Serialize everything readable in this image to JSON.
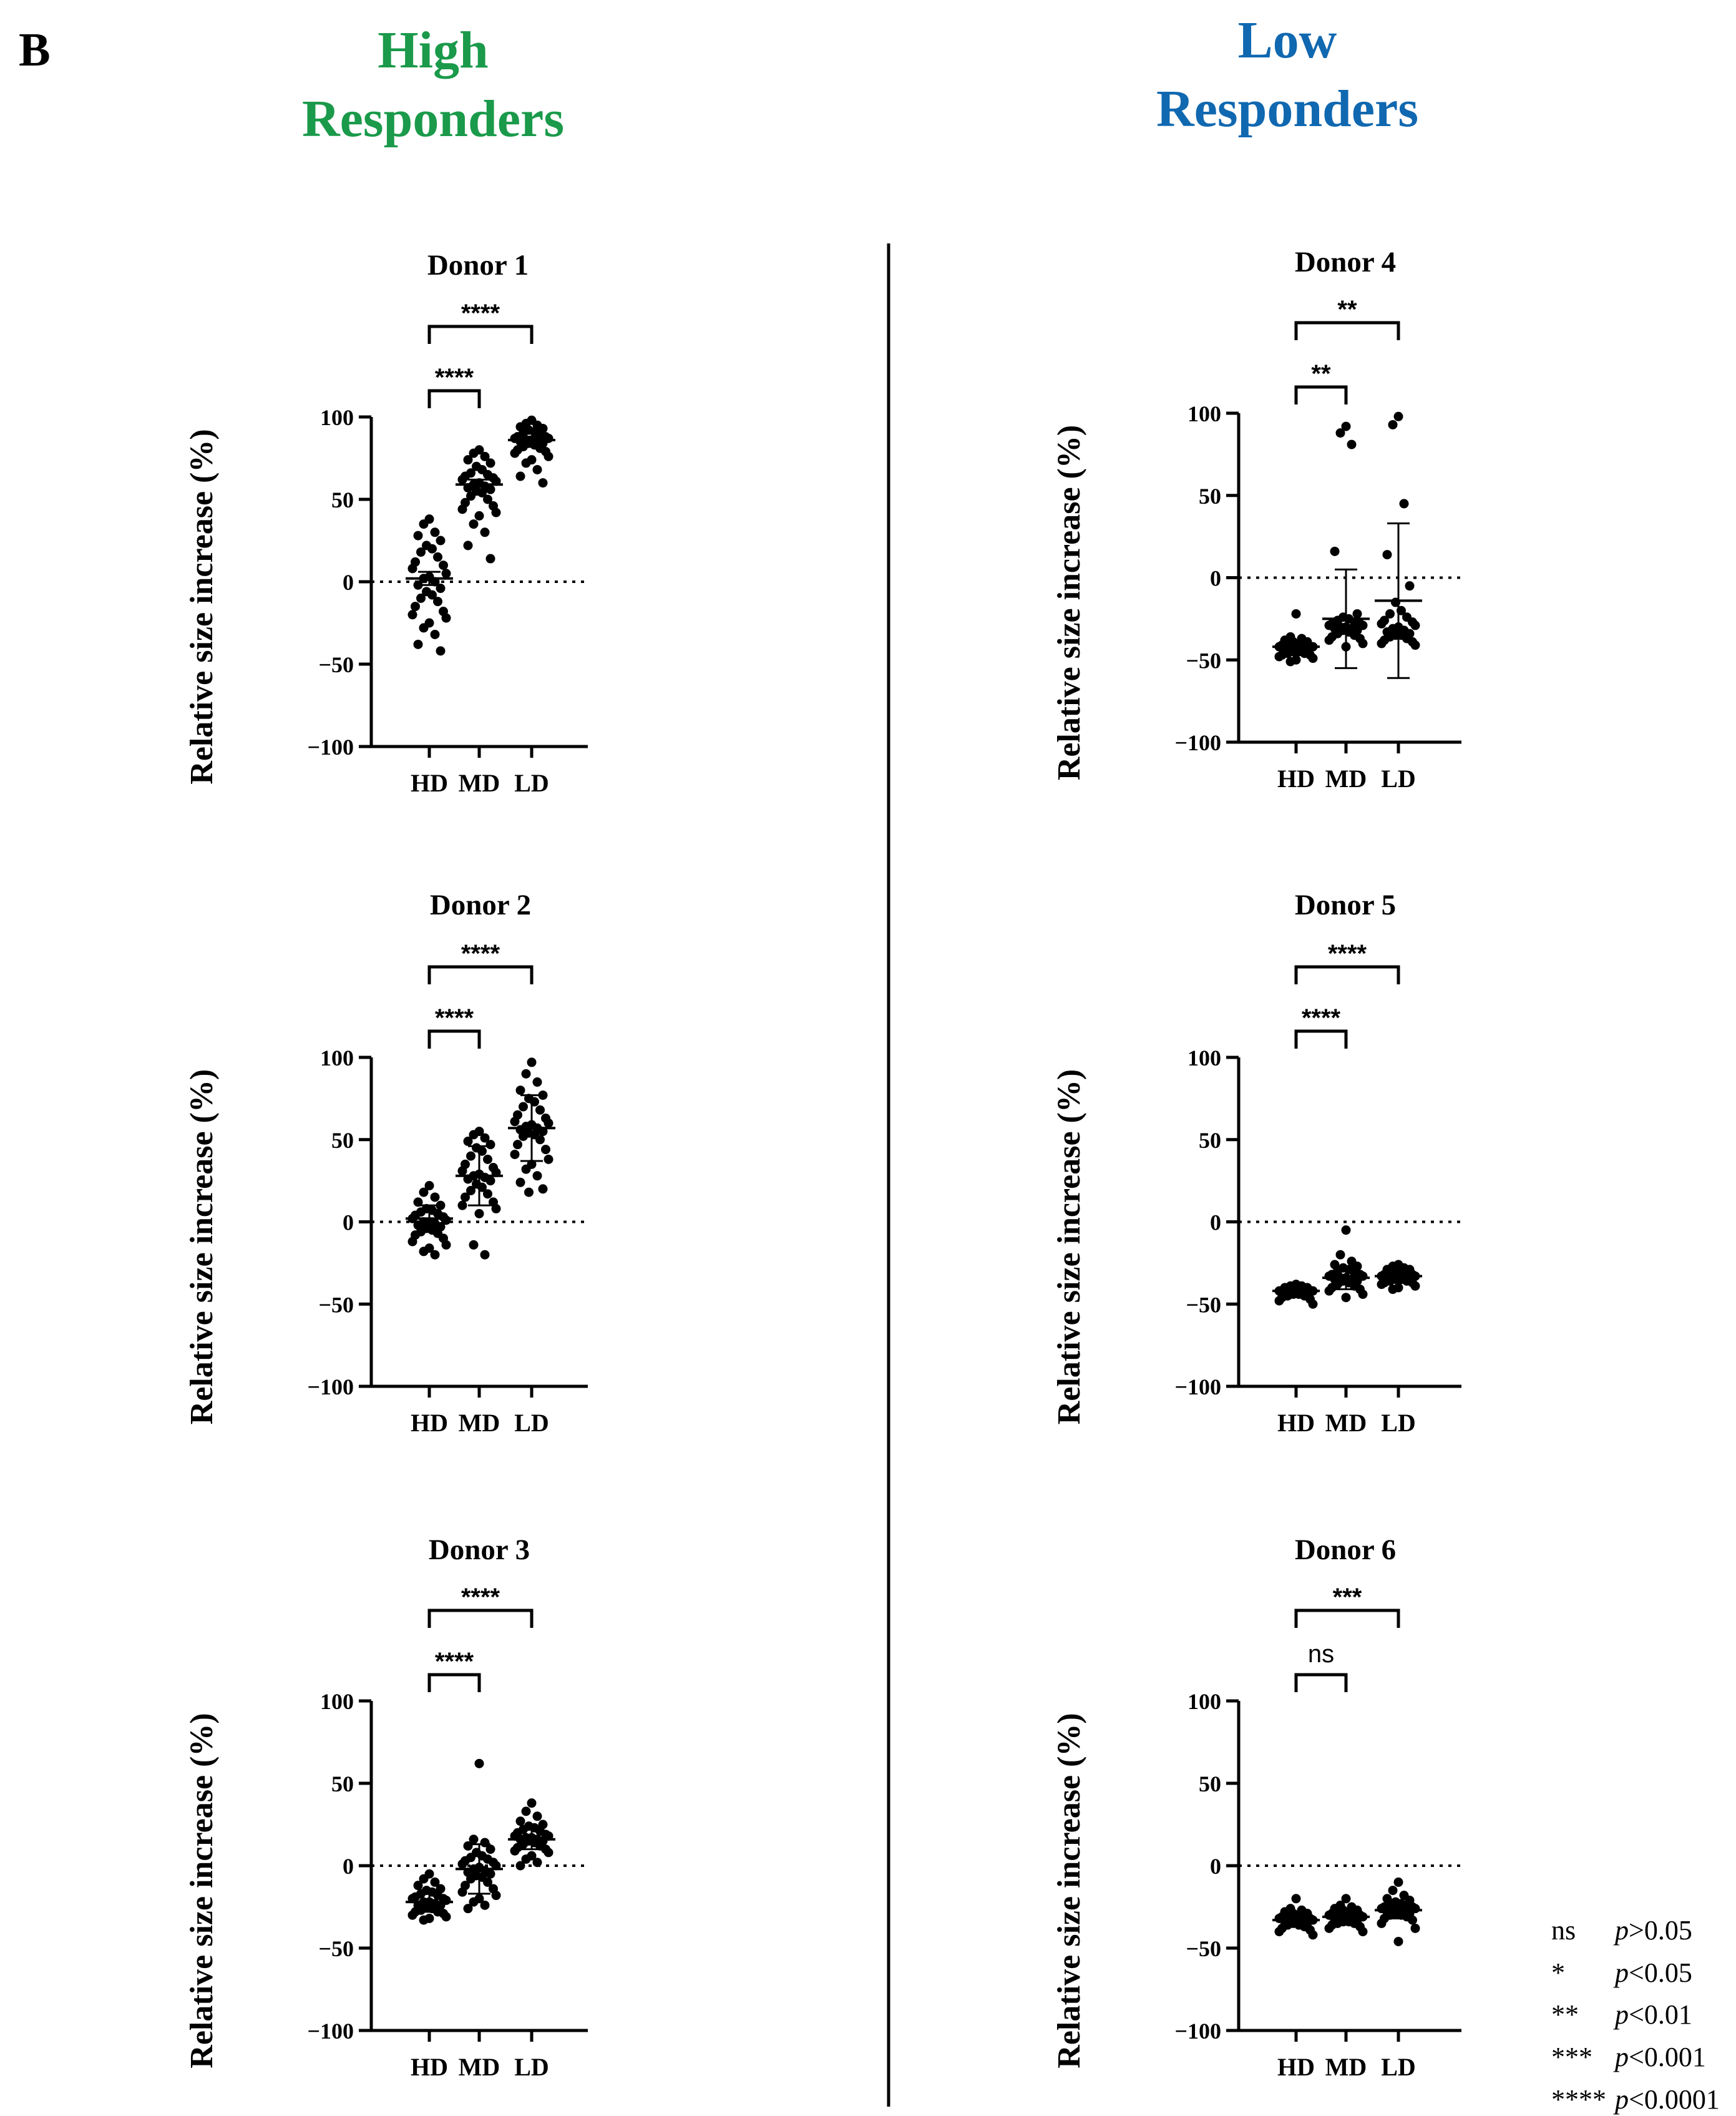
{
  "panel_letter": "B",
  "groups": {
    "high": {
      "title_line1": "High",
      "title_line2": "Responders",
      "color": "#1a9a4a"
    },
    "low": {
      "title_line1": "Low",
      "title_line2": "Responders",
      "color": "#1068b0"
    }
  },
  "legend": [
    {
      "symbol": "ns",
      "p_var": "p",
      "p_text": ">0.05"
    },
    {
      "symbol": "*",
      "p_var": "p",
      "p_text": "<0.05"
    },
    {
      "symbol": "**",
      "p_var": "p",
      "p_text": "<0.01"
    },
    {
      "symbol": "***",
      "p_var": "p",
      "p_text": "<0.001"
    },
    {
      "symbol": "****",
      "p_var": "p",
      "p_text": "<0.0001"
    }
  ],
  "chart_data": [
    {
      "type": "scatter",
      "group": "High Responders",
      "title": "Donor 1",
      "ylabel": "Relative size increase (%)",
      "ylim": [
        -100,
        100
      ],
      "yticks": [
        "100",
        "50",
        "0",
        "−50",
        "−100"
      ],
      "categories": [
        "HD",
        "MD",
        "LD"
      ],
      "reference_line_y": 0,
      "series": [
        {
          "name": "HD",
          "values": [
            38,
            35,
            30,
            28,
            25,
            22,
            20,
            18,
            15,
            12,
            10,
            8,
            5,
            3,
            2,
            0,
            -2,
            -4,
            -6,
            -8,
            -10,
            -12,
            -15,
            -18,
            -20,
            -22,
            -25,
            -28,
            -32,
            -38,
            -42
          ],
          "mean": 2,
          "err": 4
        },
        {
          "name": "MD",
          "values": [
            80,
            78,
            76,
            74,
            72,
            70,
            68,
            66,
            65,
            64,
            63,
            62,
            61,
            60,
            59,
            58,
            57,
            56,
            55,
            54,
            52,
            50,
            48,
            46,
            44,
            42,
            40,
            35,
            30,
            22,
            14
          ],
          "mean": 59,
          "err": 3
        },
        {
          "name": "LD",
          "values": [
            98,
            96,
            95,
            94,
            93,
            92,
            91,
            90,
            89,
            88,
            88,
            87,
            87,
            86,
            86,
            85,
            85,
            84,
            84,
            83,
            82,
            81,
            80,
            79,
            78,
            76,
            74,
            72,
            68,
            64,
            60
          ],
          "mean": 86,
          "err": 2
        }
      ],
      "comparisons": [
        {
          "from": "HD",
          "to": "MD",
          "label": "****",
          "level": 1
        },
        {
          "from": "HD",
          "to": "LD",
          "label": "****",
          "level": 2
        }
      ]
    },
    {
      "type": "scatter",
      "group": "High Responders",
      "title": "Donor 2",
      "ylabel": "Relative size increase (%)",
      "ylim": [
        -100,
        100
      ],
      "yticks": [
        "100",
        "50",
        "0",
        "−50",
        "−100"
      ],
      "categories": [
        "HD",
        "MD",
        "LD"
      ],
      "reference_line_y": 0,
      "series": [
        {
          "name": "HD",
          "values": [
            22,
            18,
            15,
            12,
            10,
            8,
            7,
            6,
            5,
            4,
            3,
            2,
            1,
            0,
            0,
            -1,
            -2,
            -3,
            -4,
            -5,
            -6,
            -7,
            -8,
            -10,
            -12,
            -14,
            -16,
            -18,
            -20
          ],
          "mean": 2,
          "err": 8
        },
        {
          "name": "MD",
          "values": [
            55,
            53,
            51,
            49,
            47,
            45,
            43,
            40,
            38,
            35,
            33,
            31,
            30,
            29,
            28,
            27,
            26,
            25,
            23,
            21,
            19,
            17,
            15,
            12,
            10,
            8,
            5,
            -14,
            -20
          ],
          "mean": 28,
          "err": 18
        },
        {
          "name": "LD",
          "values": [
            97,
            90,
            85,
            80,
            77,
            75,
            73,
            70,
            68,
            65,
            63,
            61,
            60,
            59,
            58,
            57,
            56,
            55,
            54,
            53,
            52,
            50,
            47,
            44,
            41,
            38,
            35,
            32,
            28,
            24,
            20,
            18
          ],
          "mean": 57,
          "err": 20
        }
      ],
      "comparisons": [
        {
          "from": "HD",
          "to": "MD",
          "label": "****",
          "level": 1
        },
        {
          "from": "HD",
          "to": "LD",
          "label": "****",
          "level": 2
        }
      ]
    },
    {
      "type": "scatter",
      "group": "High Responders",
      "title": "Donor 3",
      "ylabel": "Relative size increase (%)",
      "ylim": [
        -100,
        100
      ],
      "yticks": [
        "100",
        "50",
        "0",
        "−50",
        "−100"
      ],
      "categories": [
        "HD",
        "MD",
        "LD"
      ],
      "reference_line_y": 0,
      "series": [
        {
          "name": "HD",
          "values": [
            -5,
            -8,
            -10,
            -12,
            -14,
            -15,
            -16,
            -17,
            -18,
            -19,
            -20,
            -20,
            -21,
            -22,
            -22,
            -23,
            -24,
            -24,
            -25,
            -26,
            -27,
            -28,
            -28,
            -29,
            -30,
            -31,
            -32,
            -33
          ],
          "mean": -22,
          "err": 6
        },
        {
          "name": "MD",
          "values": [
            62,
            16,
            14,
            12,
            10,
            8,
            6,
            5,
            4,
            3,
            2,
            1,
            0,
            -1,
            -2,
            -3,
            -4,
            -5,
            -6,
            -7,
            -8,
            -10,
            -12,
            -14,
            -16,
            -18,
            -20,
            -22,
            -24,
            -26
          ],
          "mean": -2,
          "err": 15
        },
        {
          "name": "LD",
          "values": [
            38,
            33,
            30,
            27,
            25,
            24,
            23,
            22,
            21,
            20,
            19,
            18,
            18,
            17,
            17,
            16,
            16,
            15,
            15,
            14,
            13,
            12,
            11,
            10,
            9,
            8,
            6,
            4,
            2,
            0
          ],
          "mean": 16,
          "err": 6
        }
      ],
      "comparisons": [
        {
          "from": "HD",
          "to": "MD",
          "label": "****",
          "level": 1
        },
        {
          "from": "HD",
          "to": "LD",
          "label": "****",
          "level": 2
        }
      ]
    },
    {
      "type": "scatter",
      "group": "Low Responders",
      "title": "Donor 4",
      "ylabel": "Relative size increase (%)",
      "ylim": [
        -100,
        100
      ],
      "yticks": [
        "100",
        "50",
        "0",
        "−50",
        "−100"
      ],
      "categories": [
        "HD",
        "MD",
        "LD"
      ],
      "reference_line_y": 0,
      "series": [
        {
          "name": "HD",
          "values": [
            -22,
            -36,
            -37,
            -38,
            -39,
            -39,
            -40,
            -40,
            -41,
            -41,
            -42,
            -42,
            -42,
            -43,
            -43,
            -43,
            -44,
            -44,
            -45,
            -45,
            -46,
            -46,
            -47,
            -47,
            -48,
            -49,
            -50,
            -51
          ],
          "mean": -42,
          "err": 3
        },
        {
          "name": "MD",
          "values": [
            92,
            88,
            81,
            16,
            -22,
            -24,
            -25,
            -26,
            -27,
            -28,
            -28,
            -29,
            -29,
            -30,
            -30,
            -31,
            -31,
            -32,
            -32,
            -33,
            -34,
            -35,
            -36,
            -37,
            -38,
            -40,
            -42
          ],
          "mean": -25,
          "err": 30
        },
        {
          "name": "LD",
          "values": [
            98,
            93,
            45,
            14,
            -5,
            -15,
            -20,
            -22,
            -24,
            -26,
            -27,
            -28,
            -29,
            -30,
            -31,
            -32,
            -33,
            -34,
            -35,
            -35,
            -36,
            -37,
            -38,
            -39,
            -40,
            -41
          ],
          "mean": -14,
          "err": 47
        }
      ],
      "comparisons": [
        {
          "from": "HD",
          "to": "MD",
          "label": "**",
          "level": 1
        },
        {
          "from": "HD",
          "to": "LD",
          "label": "**",
          "level": 2
        }
      ]
    },
    {
      "type": "scatter",
      "group": "Low Responders",
      "title": "Donor 5",
      "ylabel": "Relative size increase (%)",
      "ylim": [
        -100,
        100
      ],
      "yticks": [
        "100",
        "50",
        "0",
        "−50",
        "−100"
      ],
      "categories": [
        "HD",
        "MD",
        "LD"
      ],
      "reference_line_y": 0,
      "series": [
        {
          "name": "HD",
          "values": [
            -38,
            -39,
            -39,
            -40,
            -40,
            -40,
            -41,
            -41,
            -41,
            -42,
            -42,
            -42,
            -42,
            -43,
            -43,
            -43,
            -43,
            -44,
            -44,
            -44,
            -45,
            -45,
            -46,
            -47,
            -48,
            -50
          ],
          "mean": -42,
          "err": 2
        },
        {
          "name": "MD",
          "values": [
            -5,
            -20,
            -24,
            -26,
            -27,
            -28,
            -29,
            -30,
            -31,
            -32,
            -32,
            -33,
            -33,
            -34,
            -34,
            -35,
            -35,
            -36,
            -36,
            -37,
            -38,
            -39,
            -40,
            -41,
            -42,
            -44,
            -46
          ],
          "mean": -34,
          "err": 7
        },
        {
          "name": "LD",
          "values": [
            -26,
            -27,
            -28,
            -29,
            -29,
            -30,
            -30,
            -31,
            -31,
            -32,
            -32,
            -33,
            -33,
            -33,
            -34,
            -34,
            -34,
            -35,
            -35,
            -35,
            -36,
            -36,
            -37,
            -37,
            -38,
            -39,
            -40,
            -41
          ],
          "mean": -33,
          "err": 3
        }
      ],
      "comparisons": [
        {
          "from": "HD",
          "to": "MD",
          "label": "****",
          "level": 1
        },
        {
          "from": "HD",
          "to": "LD",
          "label": "****",
          "level": 2
        }
      ]
    },
    {
      "type": "scatter",
      "group": "Low Responders",
      "title": "Donor 6",
      "ylabel": "Relative size increase (%)",
      "ylim": [
        -100,
        100
      ],
      "yticks": [
        "100",
        "50",
        "0",
        "−50",
        "−100"
      ],
      "categories": [
        "HD",
        "MD",
        "LD"
      ],
      "reference_line_y": 0,
      "series": [
        {
          "name": "HD",
          "values": [
            -20,
            -26,
            -27,
            -28,
            -29,
            -29,
            -30,
            -30,
            -31,
            -31,
            -32,
            -32,
            -33,
            -33,
            -33,
            -34,
            -34,
            -35,
            -35,
            -36,
            -36,
            -37,
            -38,
            -39,
            -40,
            -42
          ],
          "mean": -33,
          "err": 3
        },
        {
          "name": "MD",
          "values": [
            -20,
            -24,
            -25,
            -26,
            -27,
            -27,
            -28,
            -28,
            -29,
            -29,
            -30,
            -30,
            -31,
            -31,
            -32,
            -32,
            -33,
            -33,
            -34,
            -34,
            -35,
            -35,
            -36,
            -37,
            -38,
            -40
          ],
          "mean": -31,
          "err": 3
        },
        {
          "name": "LD",
          "values": [
            -10,
            -15,
            -18,
            -20,
            -21,
            -22,
            -23,
            -24,
            -24,
            -25,
            -25,
            -26,
            -26,
            -27,
            -27,
            -28,
            -28,
            -29,
            -29,
            -30,
            -30,
            -31,
            -32,
            -33,
            -35,
            -38,
            -46
          ],
          "mean": -27,
          "err": 5
        }
      ],
      "comparisons": [
        {
          "from": "HD",
          "to": "MD",
          "label": "ns",
          "level": 1
        },
        {
          "from": "HD",
          "to": "LD",
          "label": "***",
          "level": 2
        }
      ]
    }
  ]
}
